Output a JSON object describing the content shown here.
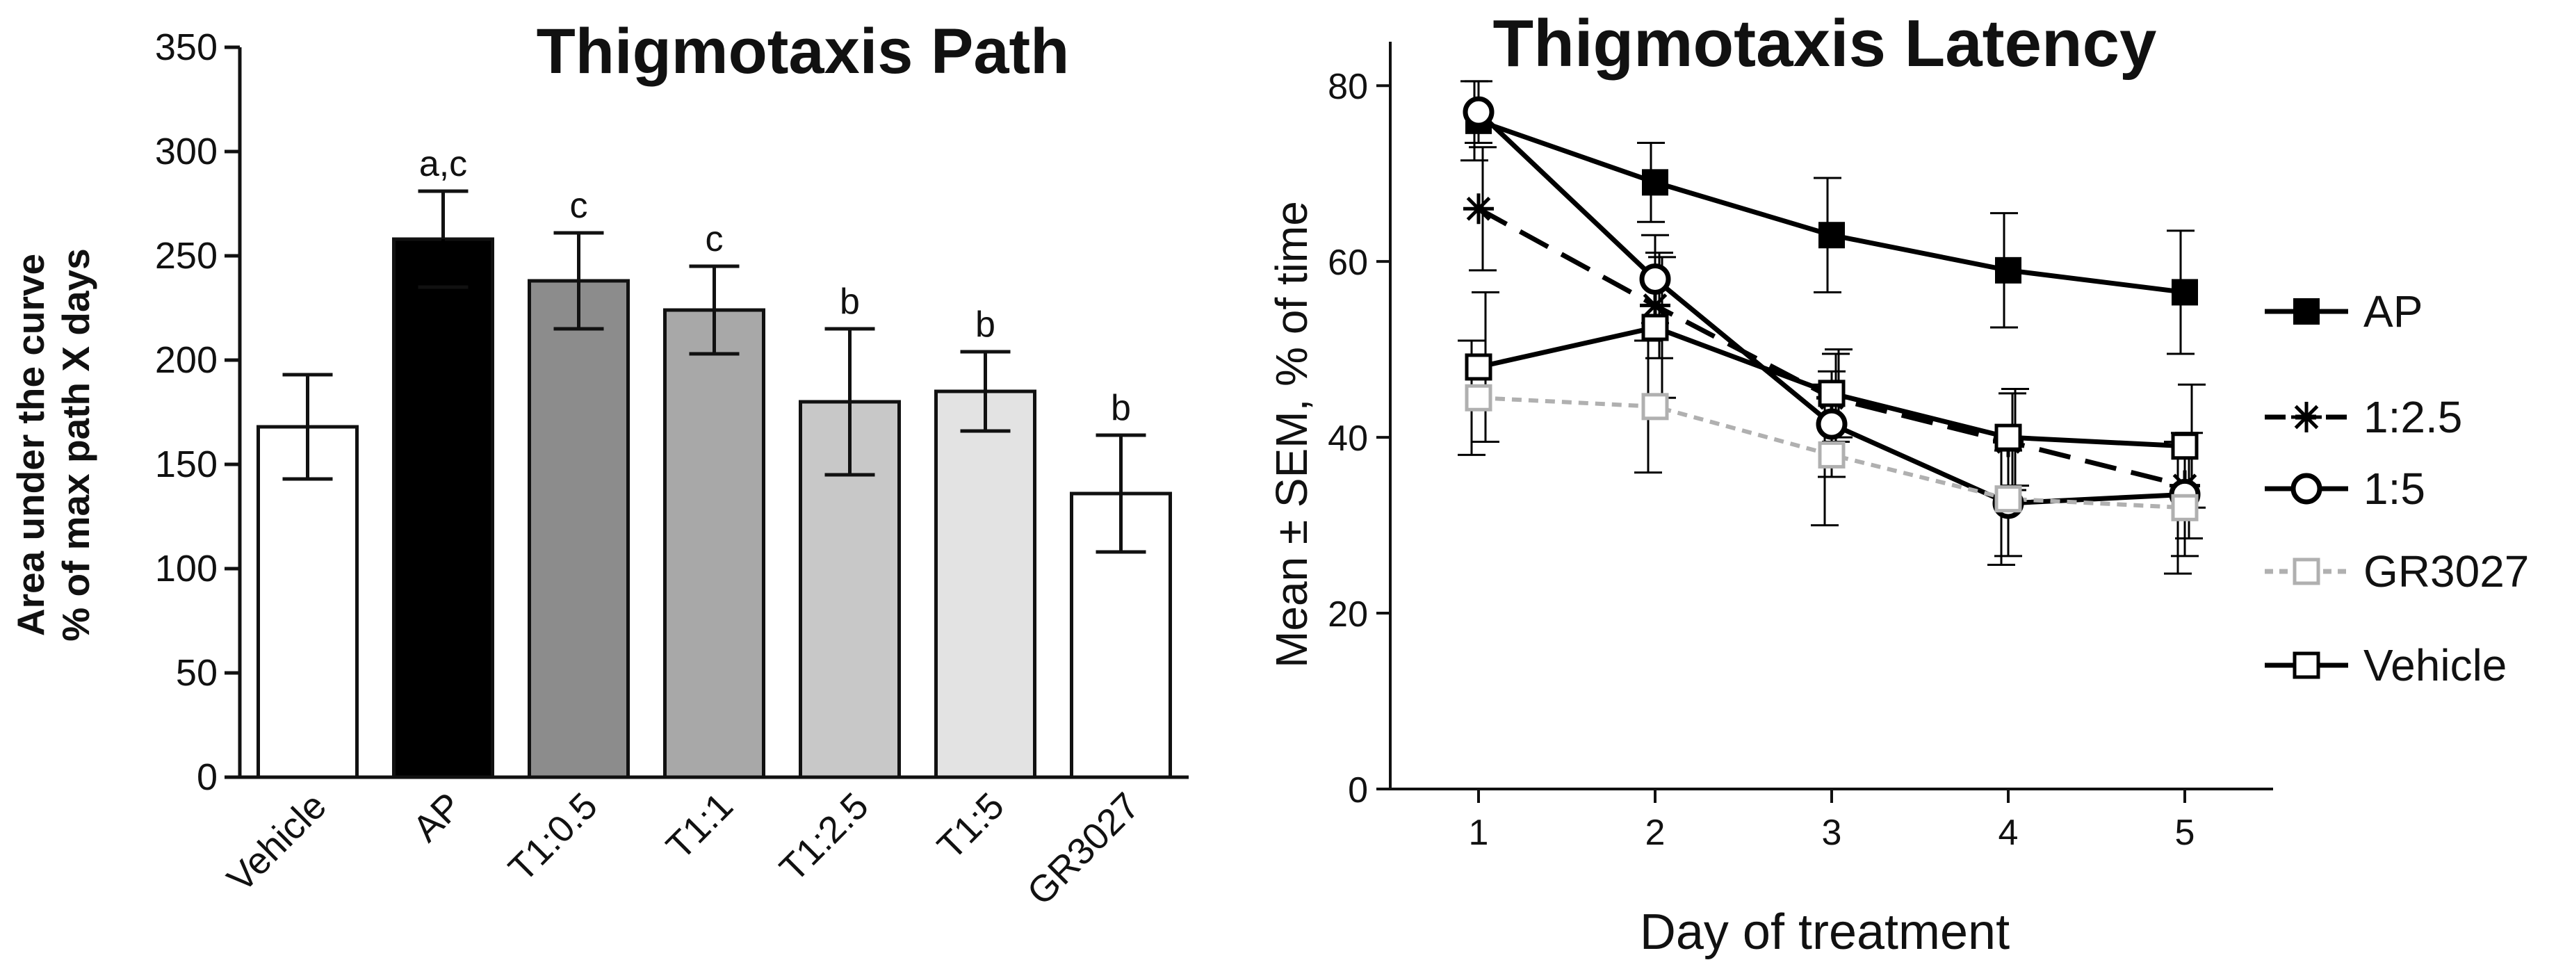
{
  "colors": {
    "axis": "#111111",
    "vehicle": "#ffffff",
    "ap": "#000000",
    "t05": "#8c8c8c",
    "t1": "#a8a8a8",
    "t25": "#c8c8c8",
    "t5": "#e3e3e3",
    "gr3027": "#ffffff",
    "gr_line": "#b0b0b0"
  },
  "chart_data": [
    {
      "type": "bar",
      "title": "Thigmotaxis Path",
      "ylabel_line1": "Area under the curve",
      "ylabel_line2": "% of max path X days",
      "xlabel": "",
      "ylim": [
        0,
        350
      ],
      "yticks": [
        0,
        50,
        100,
        150,
        200,
        250,
        300,
        350
      ],
      "categories": [
        "Vehicle",
        "AP",
        "T1:0.5",
        "T1:1",
        "T1:2.5",
        "T1:5",
        "GR3027"
      ],
      "values": [
        168,
        258,
        238,
        224,
        180,
        185,
        136
      ],
      "errors": [
        25,
        23,
        23,
        21,
        35,
        19,
        28
      ],
      "annotations": [
        "",
        "a,c",
        "c",
        "c",
        "b",
        "b",
        "b"
      ],
      "fill_keys": [
        "vehicle",
        "ap",
        "t05",
        "t1",
        "t25",
        "t5",
        "gr3027"
      ]
    },
    {
      "type": "line",
      "title": "Thigmotaxis Latency",
      "xlabel": "Day of treatment",
      "ylabel": "Mean ± SEM,  % of time",
      "x": [
        1,
        2,
        3,
        4,
        5
      ],
      "xlim": [
        0.5,
        5.5
      ],
      "ylim": [
        0,
        85
      ],
      "yticks": [
        0,
        20,
        40,
        60,
        80
      ],
      "series": [
        {
          "name": "AP",
          "values": [
            76,
            69,
            63,
            59,
            56.5
          ],
          "errors": [
            4.5,
            4.5,
            6.5,
            6.5,
            7
          ],
          "marker": "filled-square",
          "dash": "solid",
          "color_key": "ap"
        },
        {
          "name": "1:2.5",
          "values": [
            66,
            55,
            44.5,
            39.5,
            34.5
          ],
          "errors": [
            7,
            6,
            5,
            5.5,
            6
          ],
          "marker": "star",
          "dash": "dashed",
          "color_key": "ap"
        },
        {
          "name": "1:5",
          "values": [
            77,
            58,
            41.5,
            32.5,
            33.5
          ],
          "errors": [
            3.5,
            5,
            6,
            6,
            7
          ],
          "marker": "circle",
          "dash": "solid",
          "color_key": "ap"
        },
        {
          "name": "GR3027",
          "values": [
            44.5,
            43.5,
            38,
            33,
            32
          ],
          "errors": [
            6.5,
            7.5,
            8,
            7.5,
            7.5
          ],
          "marker": "open-square",
          "dash": "dotted",
          "color_key": "gr_line"
        },
        {
          "name": "Vehicle",
          "values": [
            48,
            52.5,
            45,
            40,
            39
          ],
          "errors": [
            8.5,
            8,
            5,
            5.5,
            7
          ],
          "marker": "open-square",
          "dash": "solid",
          "color_key": "ap"
        }
      ]
    }
  ]
}
